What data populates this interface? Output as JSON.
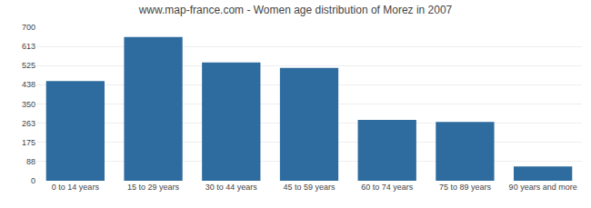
{
  "chart_data": {
    "type": "bar",
    "title": "www.map-france.com - Women age distribution of Morez in 2007",
    "categories": [
      "0 to 14 years",
      "15 to 29 years",
      "30 to 44 years",
      "45 to 59 years",
      "60 to 74 years",
      "75 to 89 years",
      "90 years and more"
    ],
    "values": [
      455,
      655,
      540,
      515,
      278,
      268,
      65
    ],
    "color": "#2e6b9e",
    "ylim": [
      0,
      700
    ],
    "yticks": [
      0,
      88,
      175,
      263,
      350,
      438,
      525,
      613,
      700
    ],
    "grid": true
  }
}
